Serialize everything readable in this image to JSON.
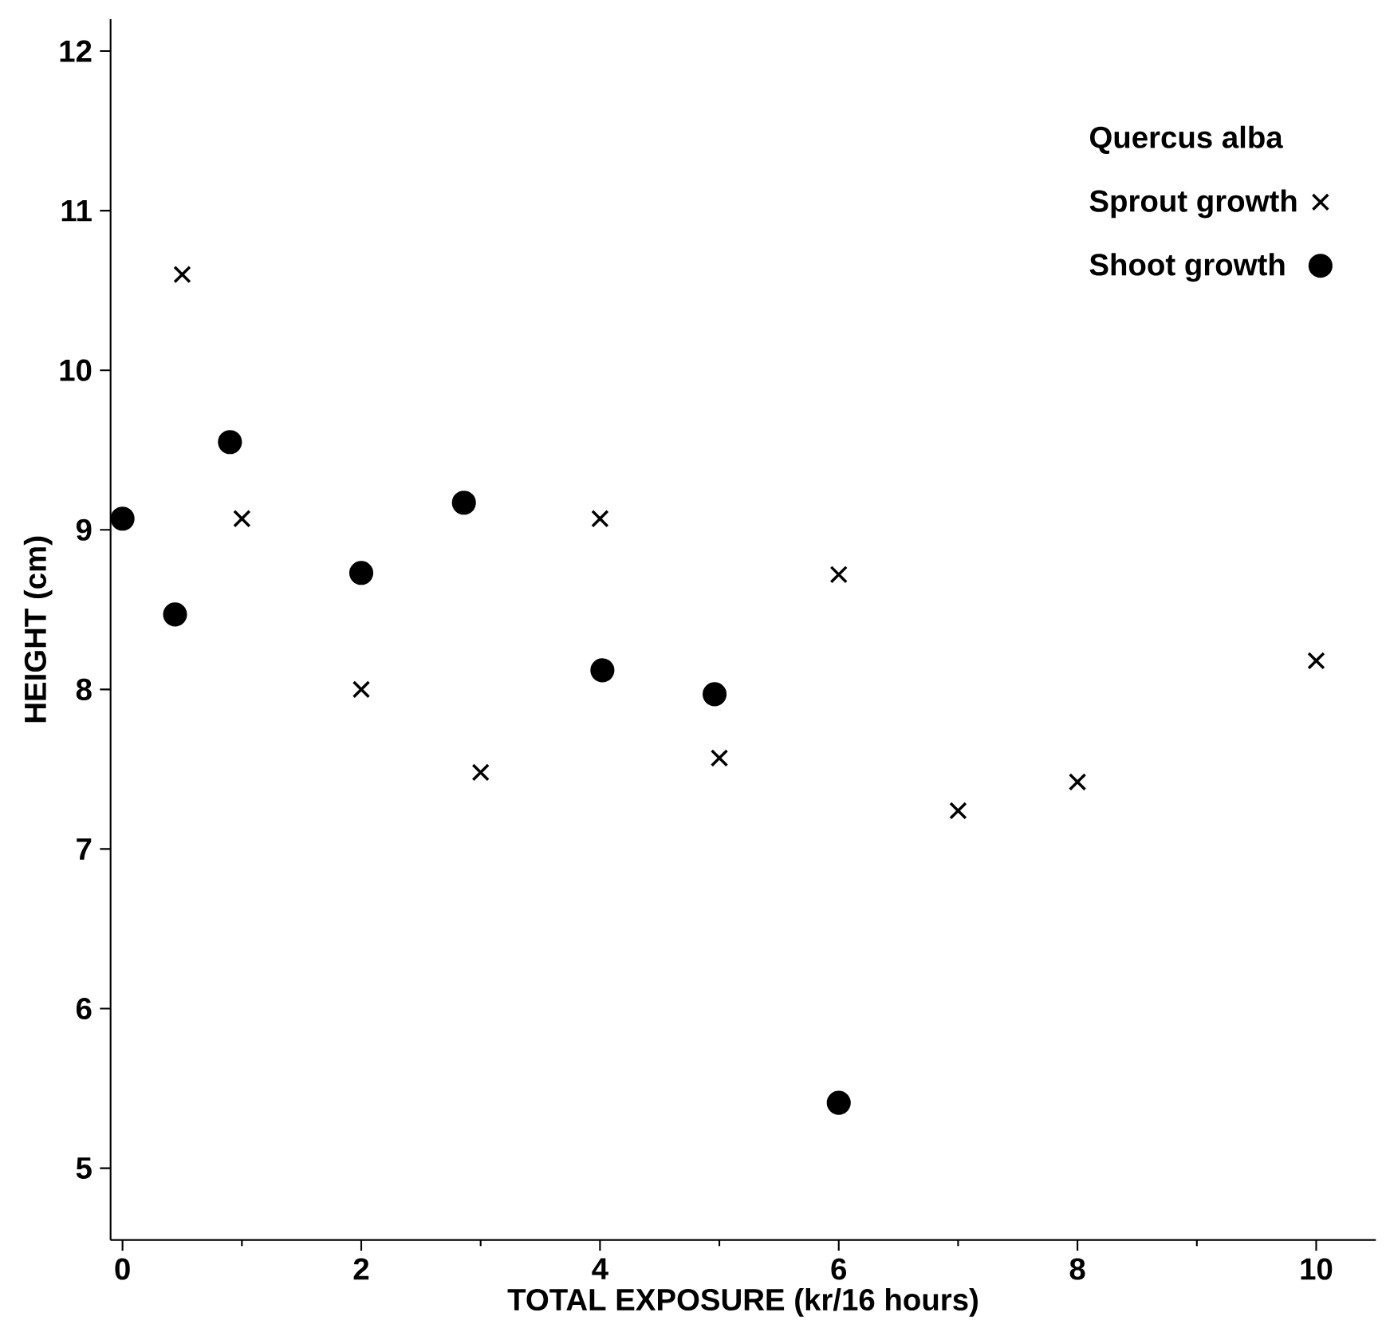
{
  "chart_data": {
    "type": "scatter",
    "xlabel": "TOTAL EXPOSURE (kr/16 hours)",
    "ylabel": "HEIGHT (cm)",
    "legend_title": "Quercus alba",
    "xlim": [
      -0.1,
      10.5
    ],
    "ylim": [
      4.55,
      12.2
    ],
    "xticks": [
      0,
      2,
      4,
      6,
      8,
      10
    ],
    "yticks": [
      5,
      6,
      7,
      8,
      9,
      10,
      11,
      12
    ],
    "grid": false,
    "legend": "top right",
    "series": [
      {
        "name": "Sprout growth",
        "color": "#000000",
        "marker": "cross",
        "x": [
          0.5,
          1,
          2,
          3,
          4,
          5,
          6,
          7,
          8,
          10
        ],
        "values": [
          10.6,
          9.07,
          8.0,
          7.48,
          9.07,
          7.57,
          8.72,
          7.24,
          7.42,
          8.18
        ]
      },
      {
        "name": "Shoot growth",
        "color": "#000000",
        "marker": "circle",
        "x": [
          0,
          0.44,
          0.9,
          2,
          2.86,
          4.02,
          4.96,
          6
        ],
        "values": [
          9.07,
          8.47,
          9.55,
          8.73,
          9.17,
          8.12,
          7.97,
          5.41
        ]
      }
    ]
  }
}
